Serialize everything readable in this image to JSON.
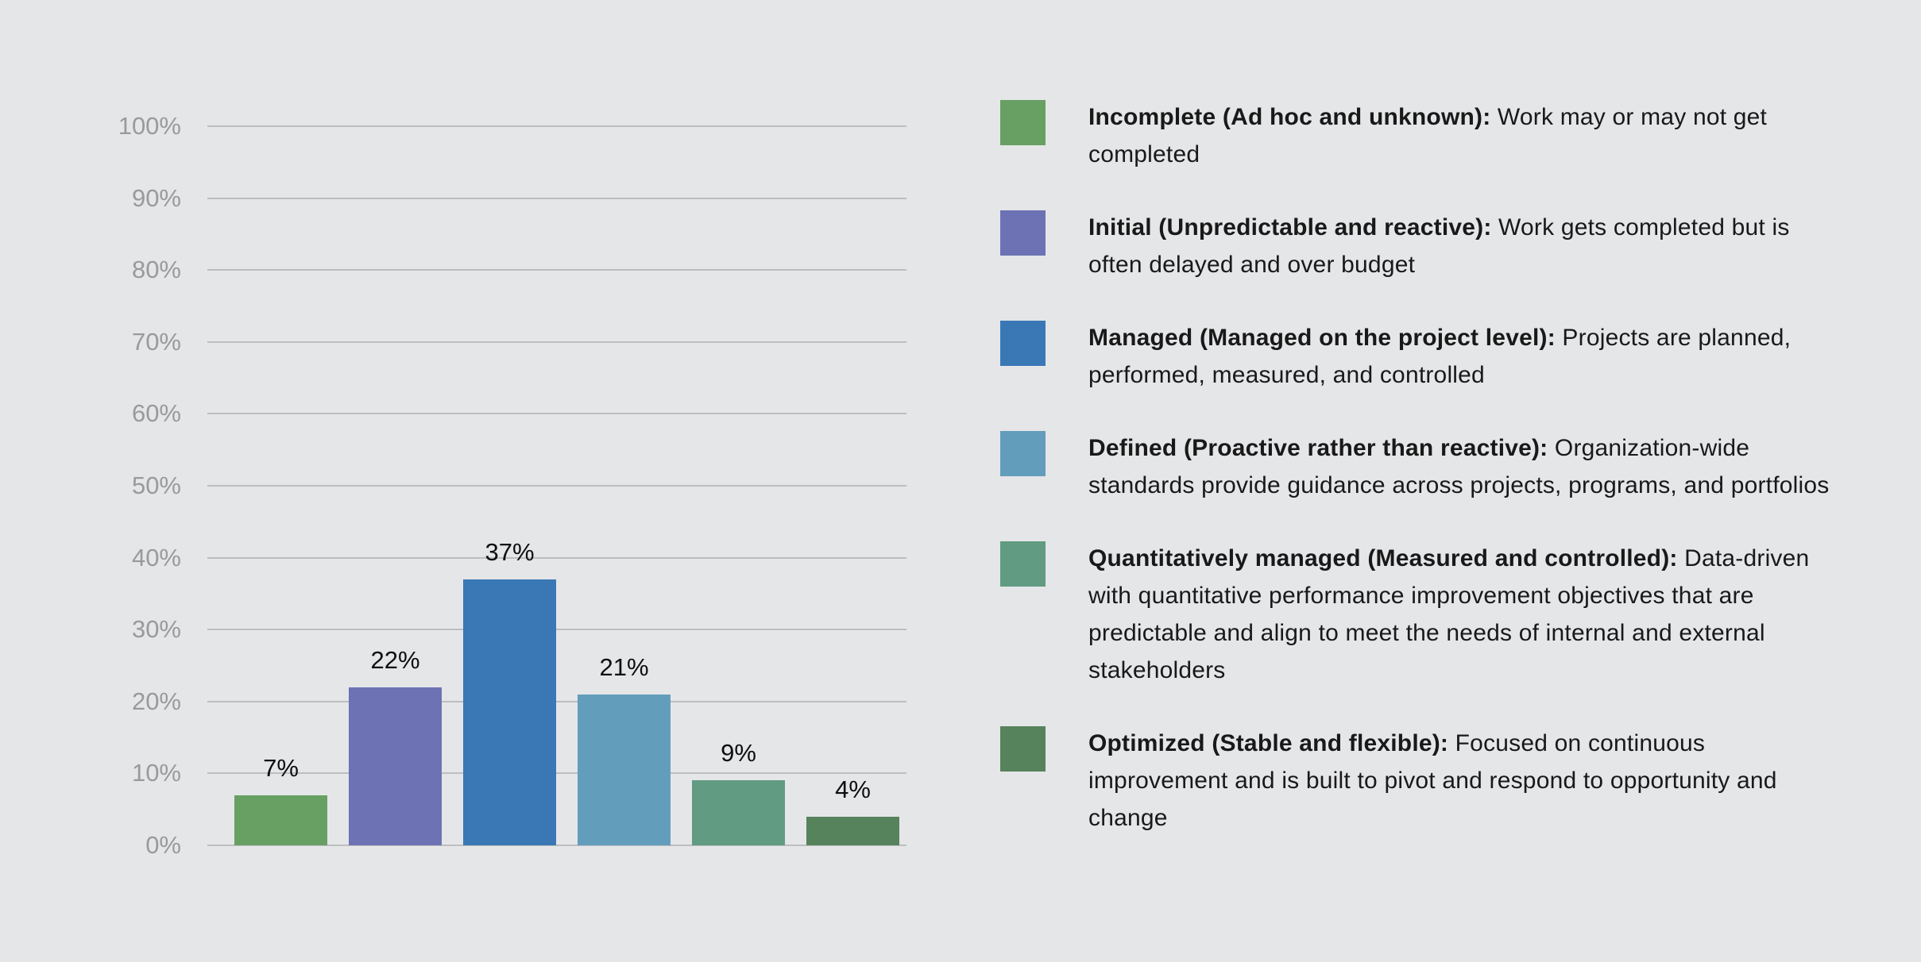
{
  "chart_data": {
    "type": "bar",
    "title": "",
    "xlabel": "",
    "ylabel": "",
    "categories": [
      "Incomplete",
      "Initial",
      "Managed",
      "Defined",
      "Quantitatively managed",
      "Optimized"
    ],
    "values": [
      7,
      22,
      37,
      21,
      9,
      4
    ],
    "value_labels": [
      "7%",
      "22%",
      "37%",
      "21%",
      "9%",
      "4%"
    ],
    "bar_colors": [
      "#68a063",
      "#6c72b4",
      "#3a78b5",
      "#639dbc",
      "#609b82",
      "#56825c"
    ],
    "ylim": [
      0,
      100
    ],
    "yticks": [
      100,
      90,
      80,
      70,
      60,
      50,
      40,
      30,
      20,
      10,
      0
    ],
    "ytick_labels": [
      "100%",
      "90%",
      "80%",
      "70%",
      "60%",
      "50%",
      "40%",
      "30%",
      "20%",
      "10%",
      "0%"
    ],
    "grid": "horizontal",
    "legend_position": "right"
  },
  "legend": {
    "items": [
      {
        "color": "#68a063",
        "title": "Incomplete (Ad hoc and unknown):",
        "description": " Work may or may not get completed"
      },
      {
        "color": "#6c72b4",
        "title": "Initial (Unpredictable and reactive):",
        "description": " Work gets completed but is often delayed and over budget"
      },
      {
        "color": "#3a78b5",
        "title": "Managed (Managed on the project level):",
        "description": " Projects are planned, performed, measured, and controlled"
      },
      {
        "color": "#639dbc",
        "title": "Defined (Proactive rather than reactive):",
        "description": " Organization-wide standards provide guidance across projects, programs, and portfolios"
      },
      {
        "color": "#609b82",
        "title": "Quantitatively managed (Measured and controlled):",
        "description": " Data-driven with quantitative performance improvement objectives that are predictable and align to meet the needs of internal and external stakeholders"
      },
      {
        "color": "#56825c",
        "title": "Optimized (Stable and flexible):",
        "description": " Focused on continuous improvement and is built to pivot and respond to opportunity and change"
      }
    ]
  },
  "colors": {
    "background": "#e5e6e8",
    "gridline": "#bcbec0",
    "axis_label": "#9a9a9a",
    "value_label": "#0e0e0e",
    "legend_text": "#191919"
  }
}
